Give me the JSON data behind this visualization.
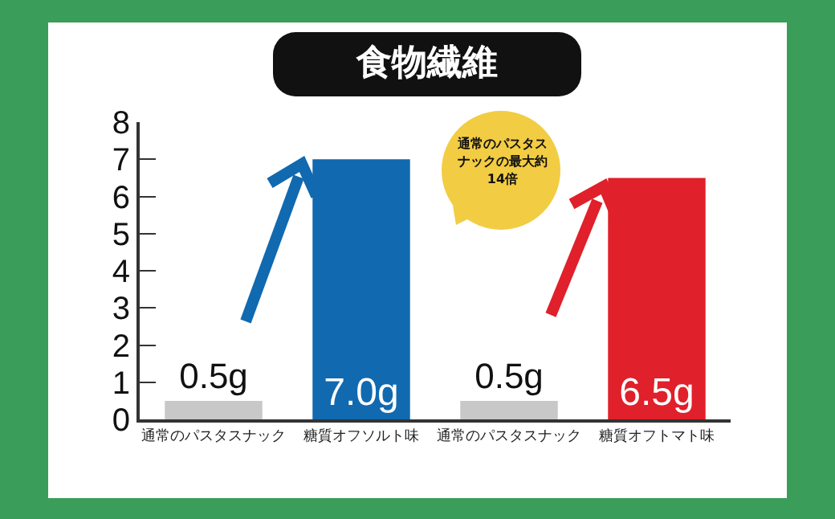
{
  "chart_data": {
    "type": "bar",
    "title": "食物繊維",
    "categories": [
      "通常のパスタスナック",
      "糖質オフソルト味",
      "通常のパスタスナック",
      "糖質オフトマト味"
    ],
    "values": [
      0.5,
      7.0,
      0.5,
      6.5
    ],
    "colors": [
      "#c8c8c8",
      "#1169b0",
      "#c8c8c8",
      "#e0202a"
    ],
    "value_labels": [
      "0.5g",
      "7.0g",
      "0.5g",
      "6.5g"
    ],
    "ylim": [
      0,
      8
    ],
    "yticks": [
      0,
      1,
      2,
      3,
      4,
      5,
      6,
      7,
      8
    ],
    "grid": false,
    "legend": false,
    "annotations": [
      "通常のパスタスナックの最大約14倍"
    ]
  }
}
